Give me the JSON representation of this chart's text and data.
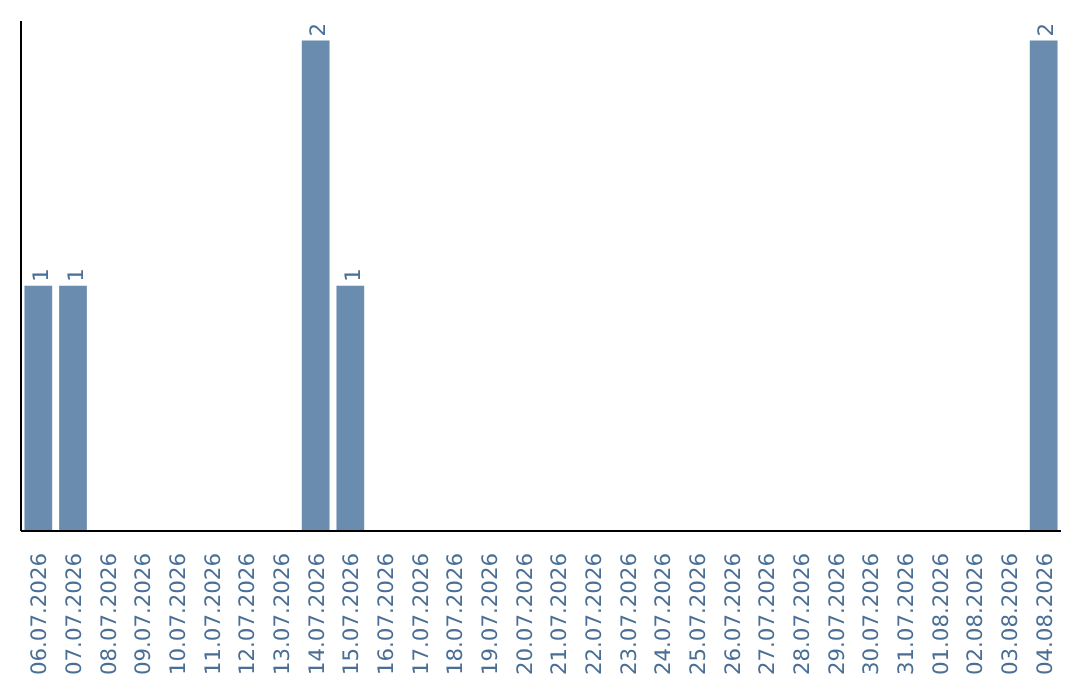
{
  "chart_data": {
    "type": "bar",
    "categories": [
      "06.07.2026",
      "07.07.2026",
      "08.07.2026",
      "09.07.2026",
      "10.07.2026",
      "11.07.2026",
      "12.07.2026",
      "13.07.2026",
      "14.07.2026",
      "15.07.2026",
      "16.07.2026",
      "17.07.2026",
      "18.07.2026",
      "19.07.2026",
      "20.07.2026",
      "21.07.2026",
      "22.07.2026",
      "23.07.2026",
      "24.07.2026",
      "25.07.2026",
      "26.07.2026",
      "27.07.2026",
      "28.07.2026",
      "29.07.2026",
      "30.07.2026",
      "31.07.2026",
      "01.08.2026",
      "02.08.2026",
      "03.08.2026",
      "04.08.2026"
    ],
    "values": [
      1,
      1,
      0,
      0,
      0,
      0,
      0,
      0,
      2,
      1,
      0,
      0,
      0,
      0,
      0,
      0,
      0,
      0,
      0,
      0,
      0,
      0,
      0,
      0,
      0,
      0,
      0,
      0,
      0,
      2
    ],
    "value_labels": [
      "1",
      "1",
      null,
      null,
      null,
      null,
      null,
      null,
      "2",
      "1",
      null,
      null,
      null,
      null,
      null,
      null,
      null,
      null,
      null,
      null,
      null,
      null,
      null,
      null,
      null,
      null,
      null,
      null,
      null,
      "2"
    ],
    "color": "#6a8caf",
    "tick_labels": "x",
    "grid": false
  }
}
